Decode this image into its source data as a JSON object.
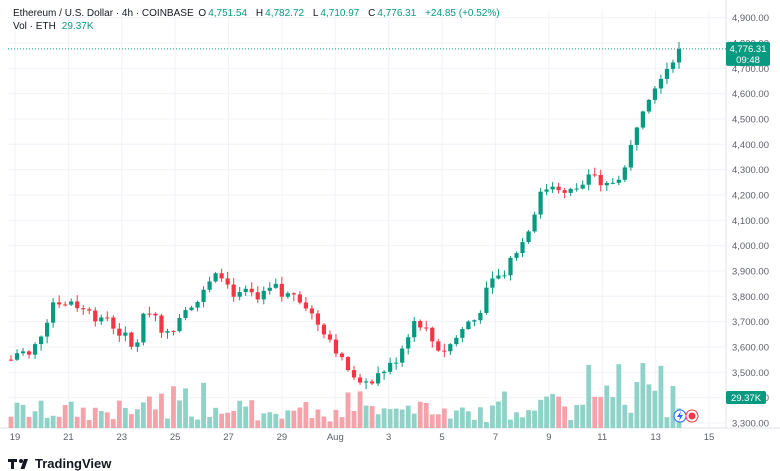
{
  "header": {
    "symbol_line": "Ethereum / U.S. Dollar · 4h · COINBASE",
    "open_key": "O",
    "open": "4,751.54",
    "high_key": "H",
    "high": "4,782.72",
    "low_key": "L",
    "low": "4,710.97",
    "close_key": "C",
    "close": "4,776.31",
    "change": "+24.85 (+0.52%)"
  },
  "volume": {
    "label": "Vol · ETH",
    "value": "29.37K"
  },
  "price_tag": {
    "value": "4,776.31",
    "countdown": "09:48"
  },
  "volume_tag": {
    "value": "29.37K"
  },
  "branding": {
    "name": "TradingView"
  },
  "colors": {
    "up": "#089981",
    "down": "#f23645",
    "up_vol": "#8fd3c8",
    "down_vol": "#f5a3aa",
    "grid": "#f0f3fa",
    "text": "#131722",
    "axis_text": "#5d606b"
  },
  "chart_data": {
    "type": "candlestick",
    "interval": "4h",
    "y_axis": {
      "ticks": [
        "4,900.00",
        "4,800.00",
        "4,700.00",
        "4,600.00",
        "4,500.00",
        "4,400.00",
        "4,300.00",
        "4,200.00",
        "4,100.00",
        "4,000.00",
        "3,900.00",
        "3,800.00",
        "3,700.00",
        "3,600.00",
        "3,500.00",
        "3,400.00",
        "3,300.00"
      ],
      "range": [
        3280,
        4930
      ]
    },
    "x_axis": {
      "ticks": [
        "19",
        "21",
        "23",
        "25",
        "27",
        "29",
        "Aug",
        "3",
        "5",
        "7",
        "9",
        "11",
        "13",
        "15"
      ]
    },
    "close_path": [
      [
        0,
        3550
      ],
      [
        6,
        3590
      ],
      [
        12,
        3560
      ],
      [
        18,
        3620
      ],
      [
        24,
        3700
      ],
      [
        30,
        3800
      ],
      [
        36,
        3760
      ],
      [
        42,
        3790
      ],
      [
        48,
        3740
      ],
      [
        54,
        3760
      ],
      [
        60,
        3690
      ],
      [
        66,
        3720
      ],
      [
        72,
        3660
      ],
      [
        78,
        3640
      ],
      [
        84,
        3580
      ],
      [
        90,
        3710
      ],
      [
        96,
        3760
      ],
      [
        102,
        3680
      ],
      [
        108,
        3640
      ],
      [
        114,
        3720
      ],
      [
        120,
        3770
      ],
      [
        126,
        3770
      ],
      [
        132,
        3820
      ],
      [
        138,
        3870
      ],
      [
        144,
        3890
      ],
      [
        150,
        3820
      ],
      [
        156,
        3800
      ],
      [
        162,
        3820
      ],
      [
        168,
        3780
      ],
      [
        174,
        3810
      ],
      [
        180,
        3840
      ],
      [
        186,
        3790
      ],
      [
        192,
        3820
      ],
      [
        198,
        3790
      ],
      [
        204,
        3740
      ],
      [
        210,
        3690
      ],
      [
        216,
        3650
      ],
      [
        222,
        3590
      ],
      [
        228,
        3520
      ],
      [
        234,
        3500
      ],
      [
        240,
        3430
      ],
      [
        246,
        3470
      ],
      [
        252,
        3500
      ],
      [
        258,
        3520
      ],
      [
        264,
        3560
      ],
      [
        270,
        3640
      ],
      [
        276,
        3710
      ],
      [
        282,
        3680
      ],
      [
        288,
        3620
      ],
      [
        294,
        3580
      ],
      [
        300,
        3610
      ],
      [
        306,
        3650
      ],
      [
        312,
        3700
      ],
      [
        318,
        3710
      ],
      [
        324,
        3810
      ],
      [
        330,
        3870
      ],
      [
        336,
        3890
      ],
      [
        342,
        3960
      ],
      [
        348,
        4000
      ],
      [
        354,
        4070
      ],
      [
        360,
        4190
      ],
      [
        366,
        4230
      ],
      [
        372,
        4250
      ],
      [
        378,
        4200
      ],
      [
        384,
        4220
      ],
      [
        390,
        4240
      ],
      [
        396,
        4300
      ],
      [
        402,
        4220
      ],
      [
        408,
        4240
      ],
      [
        414,
        4270
      ],
      [
        420,
        4310
      ],
      [
        426,
        4460
      ],
      [
        432,
        4560
      ],
      [
        438,
        4620
      ],
      [
        444,
        4680
      ],
      [
        450,
        4720
      ],
      [
        456,
        4776.31
      ]
    ],
    "volume_range": [
      0,
      55
    ]
  }
}
